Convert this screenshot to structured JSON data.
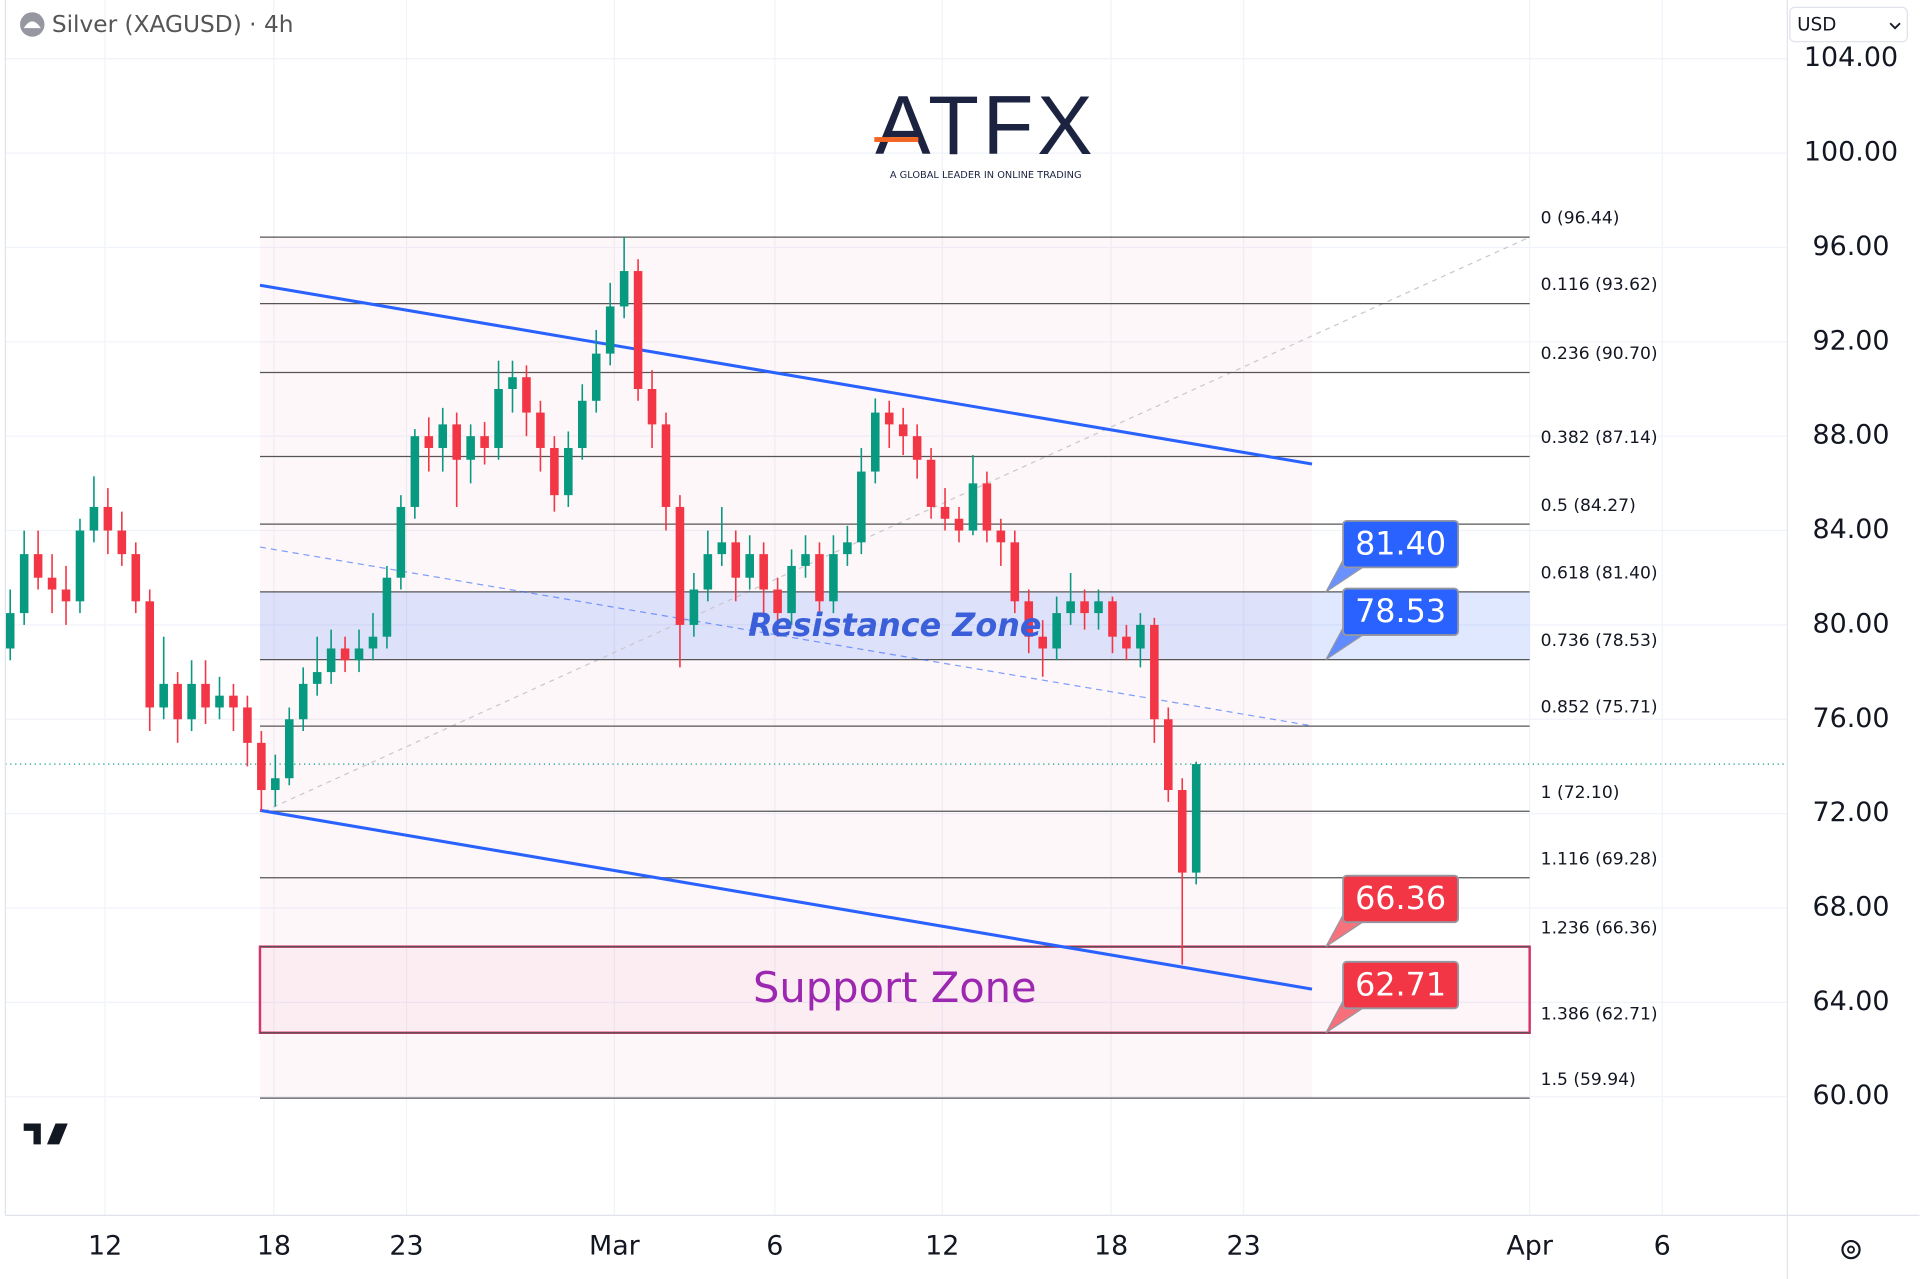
{
  "chart_data": {
    "type": "candlestick",
    "title": "Silver (XAGUSD) · 4h",
    "currency": "USD",
    "logo": {
      "name": "ATFX",
      "tagline": "A GLOBAL LEADER IN ONLINE TRADING"
    },
    "up_color": "#089981",
    "down_color": "#f23645",
    "candles": {
      "open": [
        79,
        80.5,
        83,
        82,
        81.5,
        81,
        84,
        85,
        84,
        83,
        81,
        76.5,
        77.5,
        76,
        77.5,
        76.5,
        77,
        76.5,
        75,
        73,
        73.5,
        76,
        77.5,
        78,
        79,
        78.5,
        79,
        79.5,
        82,
        85,
        88,
        87.5,
        88.5,
        87,
        88,
        87.5,
        90,
        90.5,
        89,
        87.5,
        85.5,
        87.5,
        89.5,
        91.5,
        93.5,
        95,
        90,
        88.5,
        85,
        80,
        81.5,
        83,
        83.5,
        82,
        83,
        81.5,
        80.5,
        82.5,
        83,
        81,
        83,
        83.5,
        86.5,
        89,
        88.5,
        88,
        87,
        85,
        84.5,
        84,
        86,
        84,
        83.5,
        81,
        79.5,
        79,
        80.5,
        81,
        80.5,
        81,
        79.5,
        79,
        80,
        76,
        73,
        69.5
      ],
      "high": [
        81.5,
        84,
        84,
        83,
        82.5,
        84.5,
        86.3,
        85.8,
        84.8,
        83.5,
        81.5,
        79.5,
        78,
        78.5,
        78.5,
        77.8,
        77.5,
        77,
        75.5,
        74.5,
        76.5,
        78.2,
        79.5,
        79.8,
        79.5,
        79.8,
        80.5,
        82.5,
        85.5,
        88.3,
        88.8,
        89.2,
        89,
        88.5,
        88.6,
        91.2,
        91.2,
        91,
        89.5,
        88,
        88.2,
        90.2,
        92.5,
        94.5,
        96.44,
        95.5,
        90.8,
        89,
        85.5,
        82.2,
        84,
        85,
        84,
        83.8,
        83.5,
        82,
        83.2,
        83.8,
        83.5,
        83.8,
        84.2,
        87.5,
        89.6,
        89.5,
        89.2,
        88.5,
        87.5,
        85.8,
        85,
        87.2,
        86.5,
        84.5,
        84,
        81.5,
        80.2,
        81.2,
        82.2,
        81.5,
        81.5,
        81.2,
        80,
        80.5,
        80.3,
        76.5,
        73.5,
        74.2
      ],
      "low": [
        78.5,
        80,
        81.5,
        80.5,
        80,
        80.5,
        83.5,
        83,
        82.5,
        80.5,
        75.5,
        76,
        75,
        75.5,
        75.8,
        76,
        75.5,
        74,
        72.1,
        72.3,
        73.2,
        75.5,
        77,
        77.5,
        78,
        78,
        78.5,
        79,
        81.5,
        84.5,
        86.5,
        86.5,
        85,
        86,
        86.8,
        87,
        89,
        88,
        86.5,
        84.8,
        85,
        87,
        89,
        91,
        93,
        89.5,
        87.5,
        84,
        78.2,
        79.5,
        81,
        82.5,
        81,
        81.5,
        80.5,
        79.5,
        80,
        82,
        80.5,
        80.5,
        82.5,
        83,
        86,
        87.5,
        87.2,
        86.2,
        84.5,
        84,
        83.5,
        83.8,
        83.5,
        82.5,
        80.5,
        78.8,
        77.8,
        78.5,
        80,
        79.8,
        79.8,
        78.8,
        78.5,
        78.2,
        75,
        72.5,
        65.6,
        69
      ],
      "close": [
        80.5,
        83,
        82,
        81.5,
        81,
        84,
        85,
        84,
        83,
        81,
        76.5,
        77.5,
        76,
        77.5,
        76.5,
        77,
        76.5,
        75,
        73,
        73.5,
        76,
        77.5,
        78,
        79,
        78.5,
        79,
        79.5,
        82,
        85,
        88,
        87.5,
        88.5,
        87,
        88,
        87.5,
        90,
        90.5,
        89,
        87.5,
        85.5,
        87.5,
        89.5,
        91.5,
        93.5,
        95,
        90,
        88.5,
        85,
        80,
        81.5,
        83,
        83.5,
        82,
        83,
        81.5,
        80.5,
        82.5,
        83,
        81,
        83,
        83.5,
        86.5,
        89,
        88.5,
        88,
        87,
        85,
        84.5,
        84,
        86,
        84,
        83.5,
        81,
        79.5,
        79,
        80.5,
        81,
        80.5,
        81,
        79.5,
        79,
        80,
        76,
        73,
        69.5,
        74.1
      ]
    },
    "ylim": [
      54.97,
      106.49
    ],
    "yticks": [
      {
        "value": 104,
        "label": "104.00"
      },
      {
        "value": 100,
        "label": "100.00"
      },
      {
        "value": 96,
        "label": "96.00"
      },
      {
        "value": 92,
        "label": "92.00"
      },
      {
        "value": 88,
        "label": "88.00"
      },
      {
        "value": 84,
        "label": "84.00"
      },
      {
        "value": 80,
        "label": "80.00"
      },
      {
        "value": 76,
        "label": "76.00"
      },
      {
        "value": 72,
        "label": "72.00"
      },
      {
        "value": 68,
        "label": "68.00"
      },
      {
        "value": 64,
        "label": "64.00"
      },
      {
        "value": 60,
        "label": "60.00"
      }
    ],
    "xlim": [
      -0.7,
      127.37
    ],
    "xticks": [
      {
        "value": 6.8,
        "label": "12"
      },
      {
        "value": 18.9,
        "label": "18"
      },
      {
        "value": 28.4,
        "label": "23"
      },
      {
        "value": 43.3,
        "label": "Mar"
      },
      {
        "value": 54.8,
        "label": "6"
      },
      {
        "value": 66.8,
        "label": "12"
      },
      {
        "value": 78.9,
        "label": "18"
      },
      {
        "value": 88.4,
        "label": "23"
      },
      {
        "value": 108.9,
        "label": "Apr"
      },
      {
        "value": 118.4,
        "label": "6"
      }
    ],
    "grid": true,
    "fibonacci": {
      "x": [
        17.9,
        108.9
      ],
      "levels": [
        {
          "value": 96.44,
          "label": "0 (96.44)"
        },
        {
          "value": 93.62,
          "label": "0.116 (93.62)"
        },
        {
          "value": 90.7,
          "label": "0.236 (90.70)"
        },
        {
          "value": 87.14,
          "label": "0.382 (87.14)"
        },
        {
          "value": 84.27,
          "label": "0.5 (84.27)"
        },
        {
          "value": 81.4,
          "label": "0.618 (81.40)"
        },
        {
          "value": 78.53,
          "label": "0.736 (78.53)"
        },
        {
          "value": 75.71,
          "label": "0.852 (75.71)"
        },
        {
          "value": 72.1,
          "label": "1 (72.10)"
        },
        {
          "value": 69.28,
          "label": "1.116 (69.28)"
        },
        {
          "value": 66.36,
          "label": "1.236 (66.36)"
        },
        {
          "value": 62.71,
          "label": "1.386 (62.71)"
        },
        {
          "value": 59.94,
          "label": "1.5 (59.94)"
        }
      ]
    },
    "trend_line": {
      "x": [
        18.2,
        108.9
      ],
      "y": [
        72.1,
        96.44
      ]
    },
    "channel": {
      "x": [
        17.9,
        93.3
      ],
      "upper": [
        94.4,
        86.82
      ],
      "middle": [
        83.3,
        75.72
      ],
      "lower": [
        72.14,
        64.56
      ],
      "color": "#2962ff"
    },
    "zones": [
      {
        "label": "Resistance Zone",
        "range": [
          78.53,
          81.4
        ],
        "color": "#2962ff",
        "text_color": "#3a5fd8"
      },
      {
        "label": "Support Zone",
        "range": [
          62.71,
          66.36
        ],
        "color": "#d6336c",
        "text_color": "#9c27b0"
      }
    ],
    "price_labels": [
      {
        "value": 81.4,
        "label": "81.40",
        "color": "#2962ff"
      },
      {
        "value": 78.53,
        "label": "78.53",
        "color": "#2962ff"
      },
      {
        "value": 66.36,
        "label": "66.36",
        "color": "#f23645"
      },
      {
        "value": 62.71,
        "label": "62.71",
        "color": "#f23645"
      }
    ]
  }
}
